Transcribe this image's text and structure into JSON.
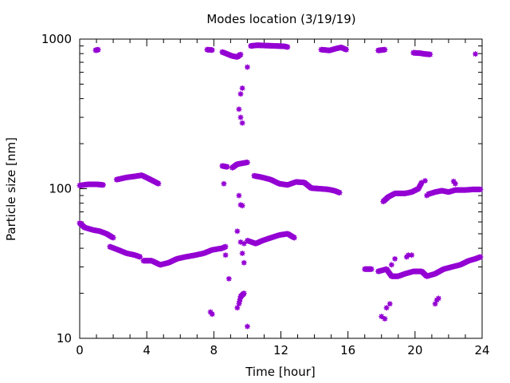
{
  "chart_data": {
    "type": "scatter",
    "title": "Modes location (3/19/19)",
    "xlabel": "Time [hour]",
    "ylabel": "Particle size [nm]",
    "xlim": [
      0,
      24
    ],
    "ylim": [
      10,
      1000
    ],
    "y_scale": "log",
    "x_ticks": [
      0,
      4,
      8,
      12,
      16,
      20,
      24
    ],
    "x_tick_labels": [
      "0",
      "4",
      "8",
      "12",
      "16",
      "20",
      "24"
    ],
    "y_ticks": [
      10,
      100,
      1000
    ],
    "y_tick_labels": [
      "10",
      "100",
      "1000"
    ],
    "grid": false,
    "marker_color": "#9400d3",
    "series": [
      {
        "segments": [
          [
            [
              0.95,
              842
            ],
            [
              1.1,
              850
            ]
          ],
          [
            [
              7.6,
              850
            ],
            [
              7.9,
              845
            ]
          ],
          [
            [
              8.5,
              820
            ],
            [
              8.8,
              795
            ],
            [
              9.1,
              770
            ],
            [
              9.4,
              760
            ],
            [
              9.6,
              790
            ]
          ],
          [
            [
              10.2,
              900
            ],
            [
              10.6,
              910
            ],
            [
              11.1,
              905
            ],
            [
              11.7,
              900
            ],
            [
              12.2,
              895
            ],
            [
              12.4,
              885
            ]
          ],
          [
            [
              14.4,
              850
            ],
            [
              14.9,
              840
            ],
            [
              15.3,
              865
            ],
            [
              15.6,
              880
            ],
            [
              15.9,
              850
            ]
          ],
          [
            [
              17.8,
              840
            ],
            [
              18.2,
              850
            ]
          ],
          [
            [
              19.9,
              810
            ],
            [
              20.3,
              805
            ],
            [
              20.6,
              795
            ],
            [
              20.9,
              790
            ]
          ]
        ],
        "points": [
          [
            10.0,
            650
          ],
          [
            9.7,
            470
          ],
          [
            9.6,
            430
          ],
          [
            9.5,
            340
          ],
          [
            9.6,
            300
          ],
          [
            9.7,
            275
          ],
          [
            23.6,
            795
          ]
        ]
      },
      {
        "segments": [
          [
            [
              0.0,
              105
            ],
            [
              0.5,
              107
            ],
            [
              1.0,
              107
            ],
            [
              1.4,
              106
            ]
          ],
          [
            [
              2.2,
              115
            ],
            [
              2.8,
              119
            ],
            [
              3.3,
              121
            ],
            [
              3.7,
              123
            ],
            [
              4.1,
              117
            ],
            [
              4.5,
              111
            ],
            [
              4.7,
              108
            ]
          ],
          [
            [
              8.5,
              142
            ],
            [
              8.8,
              140
            ]
          ],
          [
            [
              9.1,
              138
            ],
            [
              9.4,
              146
            ],
            [
              9.7,
              148
            ],
            [
              10.0,
              150
            ]
          ],
          [
            [
              10.4,
              122
            ],
            [
              10.9,
              119
            ],
            [
              11.4,
              115
            ],
            [
              11.9,
              108
            ],
            [
              12.4,
              106
            ],
            [
              12.9,
              111
            ],
            [
              13.4,
              110
            ],
            [
              13.8,
              101
            ],
            [
              14.3,
              100
            ],
            [
              14.8,
              99
            ],
            [
              15.2,
              97
            ],
            [
              15.5,
              94
            ]
          ],
          [
            [
              18.1,
              82
            ],
            [
              18.4,
              88
            ],
            [
              18.8,
              93
            ],
            [
              19.4,
              93
            ],
            [
              19.8,
              95
            ],
            [
              20.2,
              100
            ],
            [
              20.4,
              110
            ]
          ],
          [
            [
              20.8,
              92
            ],
            [
              21.2,
              95
            ],
            [
              21.6,
              97
            ],
            [
              22.0,
              95
            ],
            [
              22.4,
              98
            ],
            [
              23.0,
              98
            ],
            [
              23.5,
              99
            ],
            [
              23.9,
              99
            ]
          ]
        ],
        "points": [
          [
            8.6,
            108
          ],
          [
            9.5,
            90
          ],
          [
            9.6,
            78
          ],
          [
            9.7,
            77
          ],
          [
            22.3,
            112
          ],
          [
            22.4,
            108
          ],
          [
            20.6,
            113
          ],
          [
            20.7,
            90
          ]
        ]
      },
      {
        "segments": [
          [
            [
              0.0,
              59
            ],
            [
              0.3,
              55
            ],
            [
              0.8,
              53
            ],
            [
              1.2,
              52
            ],
            [
              1.6,
              50
            ],
            [
              2.0,
              47
            ]
          ],
          [
            [
              1.8,
              41
            ],
            [
              2.3,
              39
            ],
            [
              2.8,
              37
            ],
            [
              3.3,
              36
            ],
            [
              3.6,
              35
            ]
          ],
          [
            [
              3.8,
              33
            ],
            [
              4.3,
              33
            ],
            [
              4.8,
              31
            ],
            [
              5.3,
              32
            ],
            [
              5.8,
              34
            ],
            [
              6.3,
              35
            ],
            [
              6.9,
              36
            ],
            [
              7.4,
              37
            ],
            [
              7.9,
              39
            ],
            [
              8.5,
              40
            ],
            [
              8.7,
              41
            ]
          ],
          [
            [
              10.0,
              45
            ],
            [
              10.5,
              43
            ],
            [
              10.9,
              45
            ],
            [
              11.4,
              47
            ],
            [
              11.9,
              49
            ],
            [
              12.4,
              50
            ],
            [
              12.8,
              47
            ]
          ],
          [
            [
              17.0,
              29
            ],
            [
              17.4,
              29
            ]
          ],
          [
            [
              17.8,
              28
            ],
            [
              18.3,
              29
            ],
            [
              18.6,
              26
            ],
            [
              19.0,
              26
            ],
            [
              19.4,
              27
            ],
            [
              19.9,
              28
            ],
            [
              20.4,
              28
            ],
            [
              20.7,
              26
            ],
            [
              21.2,
              27
            ],
            [
              21.7,
              29
            ],
            [
              22.2,
              30
            ],
            [
              22.7,
              31
            ],
            [
              23.2,
              33
            ],
            [
              23.6,
              34
            ],
            [
              23.9,
              35
            ]
          ]
        ],
        "points": [
          [
            8.7,
            36
          ],
          [
            8.9,
            25
          ],
          [
            9.4,
            52
          ],
          [
            9.6,
            44
          ],
          [
            9.8,
            43
          ],
          [
            9.7,
            37
          ],
          [
            9.8,
            32
          ],
          [
            18.6,
            31
          ],
          [
            18.8,
            34
          ],
          [
            19.5,
            35
          ],
          [
            19.6,
            36
          ],
          [
            19.8,
            36
          ]
        ]
      },
      {
        "segments": [
          [
            [
              9.5,
              17
            ],
            [
              9.6,
              19
            ],
            [
              9.8,
              20
            ]
          ]
        ],
        "points": [
          [
            7.8,
            15
          ],
          [
            7.9,
            14.5
          ],
          [
            9.4,
            16
          ],
          [
            18.0,
            14
          ],
          [
            18.2,
            13.5
          ],
          [
            18.3,
            16
          ],
          [
            18.5,
            17
          ],
          [
            21.2,
            17
          ],
          [
            21.3,
            18
          ],
          [
            21.4,
            18.5
          ],
          [
            10.0,
            12
          ]
        ]
      }
    ]
  }
}
